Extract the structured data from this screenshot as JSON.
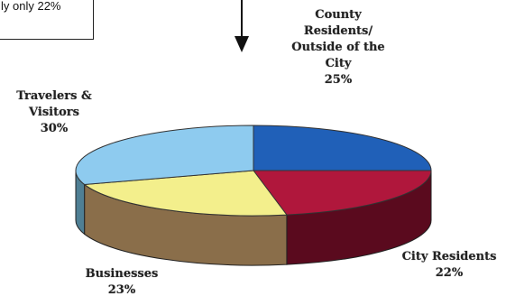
{
  "callout": {
    "text": "ly only 22%"
  },
  "chart_data": {
    "type": "pie",
    "title": "",
    "slices": [
      {
        "label": [
          "County",
          "Residents/",
          "Outside of the",
          "City"
        ],
        "value": 25,
        "pct_label": "25%",
        "color": "#2060b8",
        "side": "#143e7a"
      },
      {
        "label": [
          "City Residents"
        ],
        "value": 22,
        "pct_label": "22%",
        "color": "#b0173c",
        "side": "#5a0a1e"
      },
      {
        "label": [
          "Businesses"
        ],
        "value": 23,
        "pct_label": "23%",
        "color": "#f3ef8c",
        "side": "#8a6e4a"
      },
      {
        "label": [
          "Travelers &",
          "Visitors"
        ],
        "value": 30,
        "pct_label": "30%",
        "color": "#8ecbef",
        "side": "#4f7f94"
      }
    ]
  }
}
